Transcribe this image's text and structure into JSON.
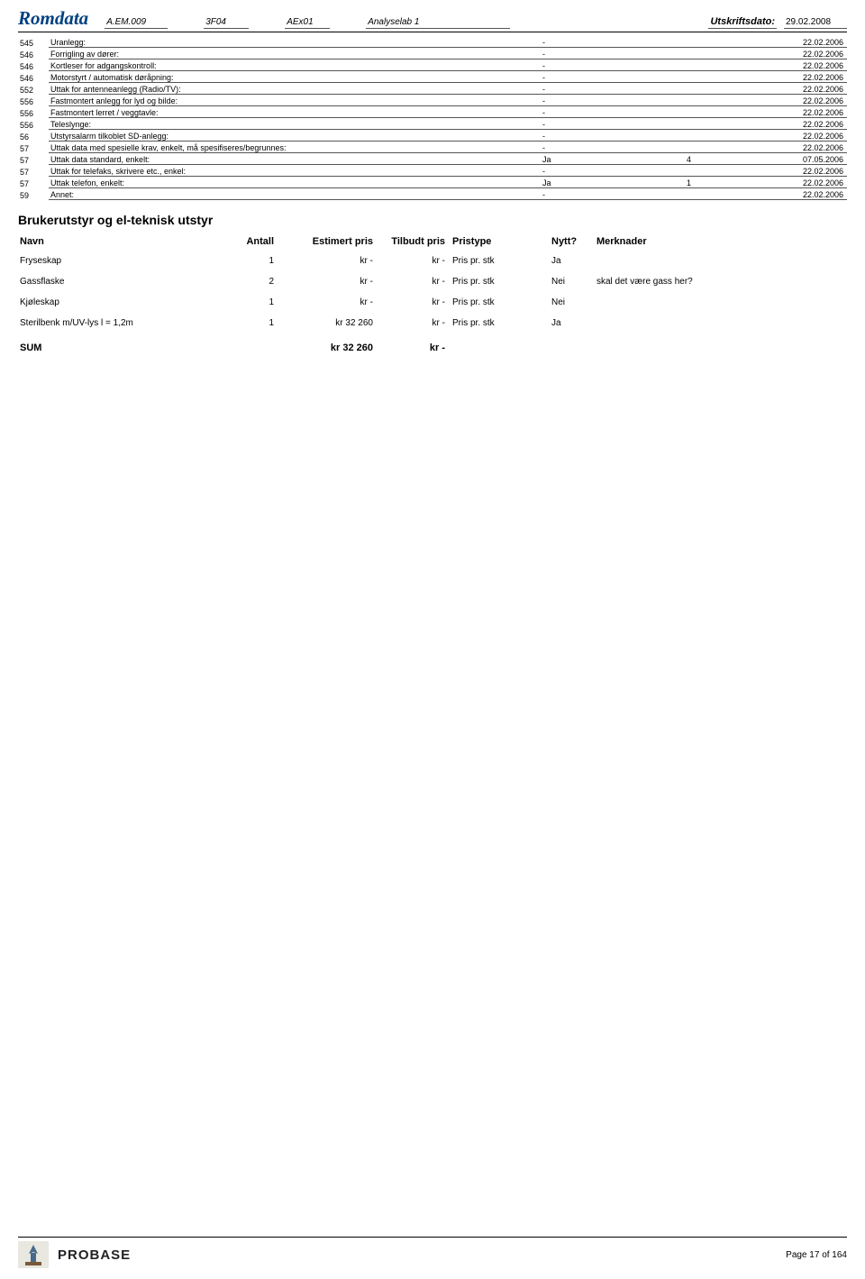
{
  "header": {
    "title": "Romdata",
    "code1": "A.EM.009",
    "code2": "3F04",
    "code3": "AEx01",
    "code4": "Analyselab 1",
    "print_label": "Utskriftsdato:",
    "print_date": "29.02.2008"
  },
  "lines": [
    {
      "code": "545",
      "desc": "Uranlegg:",
      "val": "-",
      "num": "",
      "date": "22.02.2006"
    },
    {
      "code": "546",
      "desc": "Forrigling av dører:",
      "val": "-",
      "num": "",
      "date": "22.02.2006"
    },
    {
      "code": "546",
      "desc": "Kortleser for adgangskontroll:",
      "val": "-",
      "num": "",
      "date": "22.02.2006"
    },
    {
      "code": "546",
      "desc": "Motorstyrt / automatisk døråpning:",
      "val": "-",
      "num": "",
      "date": "22.02.2006"
    },
    {
      "code": "552",
      "desc": "Uttak for antenneanlegg (Radio/TV):",
      "val": "-",
      "num": "",
      "date": "22.02.2006"
    },
    {
      "code": "556",
      "desc": "Fastmontert anlegg for lyd og bilde:",
      "val": "-",
      "num": "",
      "date": "22.02.2006"
    },
    {
      "code": "556",
      "desc": "Fastmontert lerret / veggtavle:",
      "val": "-",
      "num": "",
      "date": "22.02.2006"
    },
    {
      "code": "556",
      "desc": "Teleslynge:",
      "val": "-",
      "num": "",
      "date": "22.02.2006"
    },
    {
      "code": "56",
      "desc": "Utstyrsalarm tilkoblet SD-anlegg:",
      "val": "-",
      "num": "",
      "date": "22.02.2006"
    },
    {
      "code": "57",
      "desc": "Uttak data med spesielle krav, enkelt, må spesifiseres/begrunnes:",
      "val": "-",
      "num": "",
      "date": "22.02.2006"
    },
    {
      "code": "57",
      "desc": "Uttak data standard, enkelt:",
      "val": "Ja",
      "num": "4",
      "date": "07.05.2006"
    },
    {
      "code": "57",
      "desc": "Uttak for telefaks, skrivere etc., enkel:",
      "val": "-",
      "num": "",
      "date": "22.02.2006"
    },
    {
      "code": "57",
      "desc": "Uttak telefon, enkelt:",
      "val": "Ja",
      "num": "1",
      "date": "22.02.2006"
    },
    {
      "code": "59",
      "desc": "Annet:",
      "val": "-",
      "num": "",
      "date": "22.02.2006"
    }
  ],
  "section_title": "Brukerutstyr og el-teknisk utstyr",
  "equip_headers": {
    "navn": "Navn",
    "antall": "Antall",
    "est": "Estimert pris",
    "tp": "Tilbudt pris",
    "pt": "Pristype",
    "nytt": "Nytt?",
    "merk": "Merknader"
  },
  "equip_rows": [
    {
      "navn": "Fryseskap",
      "antall": "1",
      "est": "kr -",
      "tp": "kr -",
      "pt": "Pris pr. stk",
      "nytt": "Ja",
      "merk": ""
    },
    {
      "navn": "Gassflaske",
      "antall": "2",
      "est": "kr -",
      "tp": "kr -",
      "pt": "Pris pr. stk",
      "nytt": "Nei",
      "merk": "skal det være gass her?"
    },
    {
      "navn": "Kjøleskap",
      "antall": "1",
      "est": "kr -",
      "tp": "kr -",
      "pt": "Pris pr. stk",
      "nytt": "Nei",
      "merk": ""
    },
    {
      "navn": "Sterilbenk m/UV-lys l = 1,2m",
      "antall": "1",
      "est": "kr 32 260",
      "tp": "kr -",
      "pt": "Pris pr. stk",
      "nytt": "Ja",
      "merk": ""
    }
  ],
  "sum": {
    "label": "SUM",
    "est": "kr 32 260",
    "tp": "kr -"
  },
  "footer": {
    "brand": "PROBASE",
    "page": "Page 17 of 164"
  }
}
